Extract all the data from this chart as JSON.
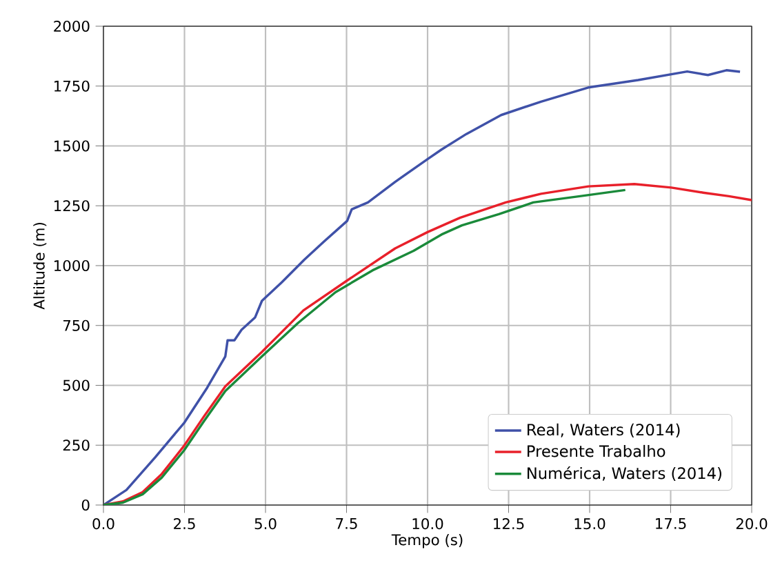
{
  "chart_data": {
    "type": "line",
    "xlabel": "Tempo (s)",
    "ylabel": "Altitude (m)",
    "xlim": [
      0,
      20
    ],
    "ylim": [
      0,
      2000
    ],
    "xticks": [
      {
        "value": 0,
        "label": "0.0"
      },
      {
        "value": 2.5,
        "label": "2.5"
      },
      {
        "value": 5,
        "label": "5.0"
      },
      {
        "value": 7.5,
        "label": "7.5"
      },
      {
        "value": 10,
        "label": "10.0"
      },
      {
        "value": 12.5,
        "label": "12.5"
      },
      {
        "value": 15,
        "label": "15.0"
      },
      {
        "value": 17.5,
        "label": "17.5"
      },
      {
        "value": 20,
        "label": "20.0"
      }
    ],
    "yticks": [
      0,
      250,
      500,
      750,
      1000,
      1250,
      1500,
      1750,
      2000
    ],
    "grid": true,
    "legend": "bottom right",
    "line_style": "solid",
    "marker": "none",
    "series": [
      {
        "name": "Real, Waters (2014)",
        "color": "#3f51a8",
        "x": [
          0,
          0.71,
          1.6,
          2.5,
          3.2,
          3.76,
          3.83,
          4.04,
          4.26,
          4.68,
          4.89,
          5.5,
          6.2,
          6.8,
          7.52,
          7.66,
          8.16,
          9.0,
          10.0,
          10.43,
          11.2,
          12.27,
          13.5,
          14.96,
          16.5,
          18.01,
          18.65,
          19.22,
          19.64
        ],
        "values": [
          0,
          63,
          200,
          345,
          490,
          621,
          688,
          688,
          732,
          784,
          853,
          930,
          1025,
          1100,
          1187,
          1235,
          1264,
          1350,
          1445,
          1485,
          1550,
          1629,
          1685,
          1744,
          1775,
          1811,
          1796,
          1816,
          1810
        ]
      },
      {
        "name": "Presente Trabalho",
        "color": "#e8202a",
        "x": [
          0,
          0.6,
          1.21,
          1.8,
          2.48,
          3.1,
          3.76,
          4.89,
          6.17,
          7.52,
          9.0,
          10.0,
          11.0,
          12.41,
          13.5,
          14.96,
          16.38,
          17.52,
          18.5,
          19.3,
          20
        ],
        "values": [
          0,
          15,
          54,
          130,
          246,
          370,
          496,
          640,
          813,
          938,
          1072,
          1140,
          1200,
          1264,
          1300,
          1331,
          1341,
          1326,
          1305,
          1290,
          1274
        ]
      },
      {
        "name": "Numérica, Waters (2014)",
        "color": "#1a8a3a",
        "x": [
          0,
          0.6,
          1.21,
          1.8,
          2.48,
          3.1,
          3.76,
          4.89,
          6.0,
          7.16,
          8.3,
          9.57,
          10.43,
          11.06,
          12.2,
          13.26,
          14.7,
          16.1
        ],
        "values": [
          0,
          10,
          45,
          115,
          227,
          350,
          476,
          621,
          760,
          889,
          980,
          1062,
          1130,
          1168,
          1215,
          1264,
          1290,
          1316
        ]
      }
    ]
  }
}
